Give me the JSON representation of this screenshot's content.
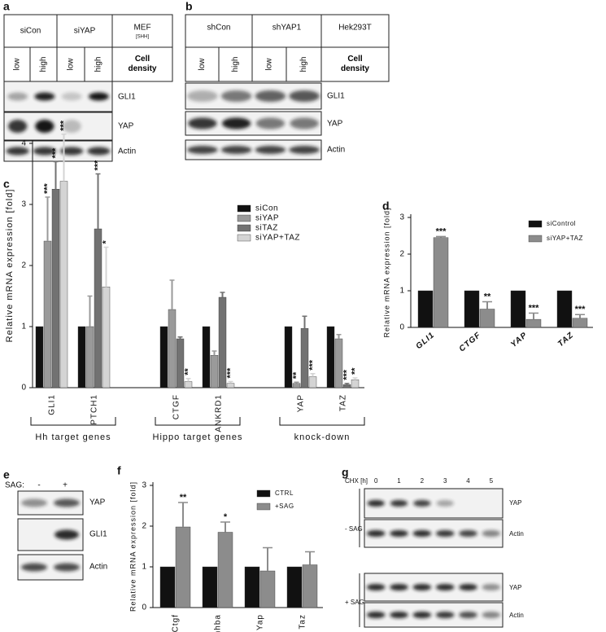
{
  "blot_a": {
    "panel": "a",
    "groups": [
      "siCon",
      "siYAP",
      "MEF"
    ],
    "group_note": "[SHH]",
    "density": [
      "low",
      "high",
      "low",
      "high"
    ],
    "density_label": "Cell density",
    "rows": [
      "GLI1",
      "YAP",
      "Actin"
    ]
  },
  "blot_b": {
    "panel": "b",
    "groups": [
      "shCon",
      "shYAP1",
      "Hek293T"
    ],
    "density": [
      "low",
      "high",
      "low",
      "high"
    ],
    "density_label": "Cell density",
    "rows": [
      "GLI1",
      "YAP",
      "Actin"
    ]
  },
  "blot_e": {
    "panel": "e",
    "treatment": "SAG:",
    "lanes": [
      "-",
      "+"
    ],
    "rows": [
      "YAP",
      "GLI1",
      "Actin"
    ]
  },
  "blot_g": {
    "panel": "g",
    "time_label": "CHX [h]",
    "timepoints": [
      "0",
      "1",
      "2",
      "3",
      "4",
      "5"
    ],
    "conditions": [
      "- SAG",
      "+ SAG"
    ],
    "rows": [
      "YAP",
      "Actin"
    ]
  },
  "chart_data": [
    {
      "type": "bar",
      "panel": "c",
      "ylabel": "Relative mRNA expression [fold]",
      "categories": [
        "GLI1",
        "PTCH1",
        "CTGF",
        "ANKRD1",
        "YAP",
        "TAZ"
      ],
      "group_labels": [
        "Hh target genes",
        "Hippo target genes",
        "knock-down"
      ],
      "ylim": [
        0,
        4
      ],
      "yticks": [
        0,
        1,
        2,
        3,
        4
      ],
      "legend": "upper right",
      "series": [
        {
          "name": "siCon",
          "color": "#111111",
          "values": [
            1,
            1,
            1,
            1,
            1,
            1
          ]
        },
        {
          "name": "siYAP",
          "color": "#9a9a9a",
          "values": [
            2.4,
            1.0,
            1.28,
            0.53,
            0.07,
            0.8
          ],
          "errors": [
            0.72,
            0.5,
            0.48,
            0.07,
            0.02,
            0.07
          ],
          "stars": [
            "***",
            null,
            null,
            null,
            "**",
            null
          ]
        },
        {
          "name": "siTAZ",
          "color": "#727272",
          "values": [
            3.25,
            2.6,
            0.8,
            1.48,
            0.97,
            0.05
          ],
          "errors": [
            0.45,
            0.9,
            0.03,
            0.08,
            0.2,
            0.02
          ],
          "stars": [
            "***",
            "***",
            null,
            null,
            null,
            "***"
          ]
        },
        {
          "name": "siYAP+TAZ",
          "color": "#d4d4d4",
          "values": [
            3.38,
            1.65,
            0.1,
            0.07,
            0.18,
            0.13
          ],
          "errors": [
            0.77,
            0.65,
            0.05,
            0.03,
            0.05,
            0.03
          ],
          "stars": [
            "***",
            "*",
            "**",
            "***",
            "***",
            "**"
          ]
        }
      ]
    },
    {
      "type": "bar",
      "panel": "d",
      "ylabel": "Relative mRNA expression [fold]",
      "categories": [
        "GLI1",
        "CTGF",
        "YAP",
        "TAZ"
      ],
      "ylim": [
        0,
        3
      ],
      "yticks": [
        0,
        1,
        2,
        3
      ],
      "legend": "upper right",
      "series": [
        {
          "name": "siControl",
          "color": "#111111",
          "values": [
            1,
            1,
            1,
            1
          ]
        },
        {
          "name": "siYAP+TAZ",
          "color": "#8c8c8c",
          "values": [
            2.45,
            0.5,
            0.22,
            0.25
          ],
          "errors": [
            0.03,
            0.2,
            0.17,
            0.1
          ],
          "stars": [
            "***",
            "**",
            "***",
            "***"
          ]
        }
      ]
    },
    {
      "type": "bar",
      "panel": "f",
      "ylabel": "Relative mRNA expression [fold]",
      "categories": [
        "Ctgf",
        "Inhba",
        "Yap",
        "Taz"
      ],
      "ylim": [
        0,
        3
      ],
      "yticks": [
        0,
        1,
        2,
        3
      ],
      "legend": "upper right",
      "series": [
        {
          "name": "CTRL",
          "color": "#111111",
          "values": [
            1,
            1,
            1,
            1
          ]
        },
        {
          "name": "+SAG",
          "color": "#8c8c8c",
          "values": [
            1.98,
            1.85,
            0.9,
            1.05
          ],
          "errors": [
            0.6,
            0.25,
            0.57,
            0.32
          ],
          "stars": [
            "**",
            "*",
            null,
            null
          ]
        }
      ]
    }
  ]
}
